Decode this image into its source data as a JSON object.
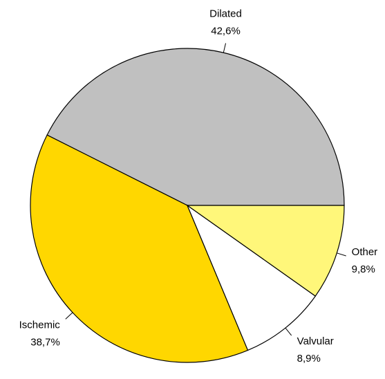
{
  "chart_data": {
    "type": "pie",
    "categories": [
      "Dilated",
      "Ischemic",
      "Valvular",
      "Other"
    ],
    "values": [
      42.6,
      38.7,
      8.9,
      9.8
    ],
    "value_labels": [
      "42,6%",
      "38,7%",
      "8,9%",
      "9,8%"
    ],
    "colors": [
      "#c0c0c0",
      "#ffd700",
      "#ffffff",
      "#fff77a"
    ]
  }
}
